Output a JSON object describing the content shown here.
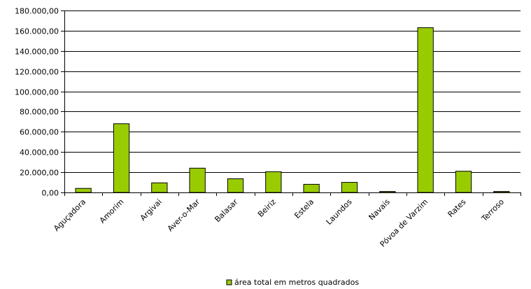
{
  "chart_data": {
    "type": "bar",
    "categories": [
      "Aguçadora",
      "Amorim",
      "Argivai",
      "Aver-o-Mar",
      "Balasar",
      "Beiriz",
      "Estela",
      "Laundos",
      "Navais",
      "Póvoa de Varzim",
      "Rates",
      "Terroso"
    ],
    "series": [
      {
        "name": "área total em metros quadrados",
        "values": [
          4000,
          68000,
          9500,
          24000,
          13500,
          20500,
          8000,
          10000,
          1000,
          163000,
          21000,
          1000
        ]
      }
    ],
    "ylim": [
      0,
      180000
    ],
    "yticks": [
      0,
      20000,
      40000,
      60000,
      80000,
      100000,
      120000,
      140000,
      160000,
      180000
    ],
    "ytick_labels": [
      "0,00",
      "20.000,00",
      "40.000,00",
      "60.000,00",
      "80.000,00",
      "100.000,00",
      "120.000,00",
      "140.000,00",
      "160.000,00",
      "180.000,00"
    ],
    "grid": true,
    "legend_position": "bottom",
    "colors": {
      "bar_fill": "#99cc00",
      "bar_stroke": "#000000",
      "grid": "#000000",
      "axis": "#000000"
    }
  }
}
